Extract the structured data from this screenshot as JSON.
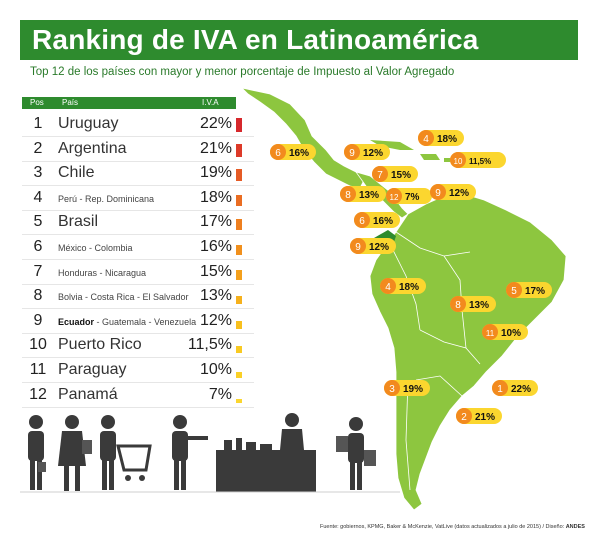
{
  "title": "Ranking de IVA en Latinoamérica",
  "subtitle": "Top 12 de los países con mayor y menor porcentaje de  Impuesto al Valor Agregado",
  "table_header": {
    "pos": "Pos",
    "country": "País",
    "rate": "I.V.A"
  },
  "source": "Fuente: gobiernos, KPMG, Baker & McKenzie, VatLive (datos actualizados a julio de 2015) / Diseño:",
  "source_brand": "ANDES",
  "colors": {
    "brand_green": "#2e8b2e",
    "map_green": "#8dc63f",
    "badge_yellow": "#fbd62f",
    "badge_orange": "#f28a1e",
    "highlight_green": "#2e8b2e"
  },
  "chart_data": {
    "type": "table",
    "columns": [
      "Pos",
      "País",
      "I.V.A"
    ],
    "rows": [
      {
        "pos": "1",
        "country": "Uruguay",
        "rate": "22%",
        "value": 22,
        "style": "big",
        "color": "#d6282c"
      },
      {
        "pos": "2",
        "country": "Argentina",
        "rate": "21%",
        "value": 21,
        "style": "big",
        "color": "#dd3a29"
      },
      {
        "pos": "3",
        "country": "Chile",
        "rate": "19%",
        "value": 19,
        "style": "big",
        "color": "#e55b25"
      },
      {
        "pos": "4",
        "country": "Perú - Rep. Dominicana",
        "rate": "18%",
        "value": 18,
        "style": "small",
        "color": "#ea6d22"
      },
      {
        "pos": "5",
        "country": "Brasil",
        "rate": "17%",
        "value": 17,
        "style": "big",
        "color": "#ee7f1f"
      },
      {
        "pos": "6",
        "country": "México - Colombia",
        "rate": "16%",
        "value": 16,
        "style": "small",
        "color": "#f1901d"
      },
      {
        "pos": "7",
        "country": "Honduras - Nicaragua",
        "rate": "15%",
        "value": 15,
        "style": "small",
        "color": "#f4a01c"
      },
      {
        "pos": "8",
        "country": "Bolvia - Costa Rica - El Salvador",
        "rate": "13%",
        "value": 13,
        "style": "small",
        "color": "#f6b11d"
      },
      {
        "pos": "9",
        "country_bold": "Ecuador",
        "country": " - Guatemala - Venezuela",
        "rate": "12%",
        "value": 12,
        "style": "mixed",
        "color": "#f8c01e"
      },
      {
        "pos": "10",
        "country": "Puerto Rico",
        "rate": "11,5%",
        "value": 11.5,
        "style": "big",
        "color": "#f9ca22"
      },
      {
        "pos": "11",
        "country": "Paraguay",
        "rate": "10%",
        "value": 10,
        "style": "big",
        "color": "#fad027"
      },
      {
        "pos": "12",
        "country": "Panamá",
        "rate": "7%",
        "value": 7,
        "style": "big",
        "color": "#fbd62f"
      }
    ],
    "map_badges": [
      {
        "rank": "6",
        "rate": "16%",
        "place": "México"
      },
      {
        "rank": "9",
        "rate": "12%",
        "place": "Guatemala"
      },
      {
        "rank": "7",
        "rate": "15%",
        "place": "Honduras"
      },
      {
        "rank": "8",
        "rate": "13%",
        "place": "El Salvador"
      },
      {
        "rank": "12",
        "rate": "7%",
        "place": "Panamá"
      },
      {
        "rank": "7",
        "rate": "15%",
        "place": "Nicaragua"
      },
      {
        "rank": "8",
        "rate": "13%",
        "place": "Costa Rica"
      },
      {
        "rank": "4",
        "rate": "18%",
        "place": "Rep. Dominicana"
      },
      {
        "rank": "10",
        "rate": "11,5%",
        "place": "Puerto Rico"
      },
      {
        "rank": "9",
        "rate": "12%",
        "place": "Venezuela"
      },
      {
        "rank": "6",
        "rate": "16%",
        "place": "Colombia"
      },
      {
        "rank": "9",
        "rate": "12%",
        "place": "Ecuador"
      },
      {
        "rank": "4",
        "rate": "18%",
        "place": "Perú"
      },
      {
        "rank": "8",
        "rate": "13%",
        "place": "Bolivia"
      },
      {
        "rank": "5",
        "rate": "17%",
        "place": "Brasil"
      },
      {
        "rank": "11",
        "rate": "10%",
        "place": "Paraguay"
      },
      {
        "rank": "3",
        "rate": "19%",
        "place": "Chile"
      },
      {
        "rank": "1",
        "rate": "22%",
        "place": "Uruguay"
      },
      {
        "rank": "2",
        "rate": "21%",
        "place": "Argentina"
      }
    ]
  }
}
